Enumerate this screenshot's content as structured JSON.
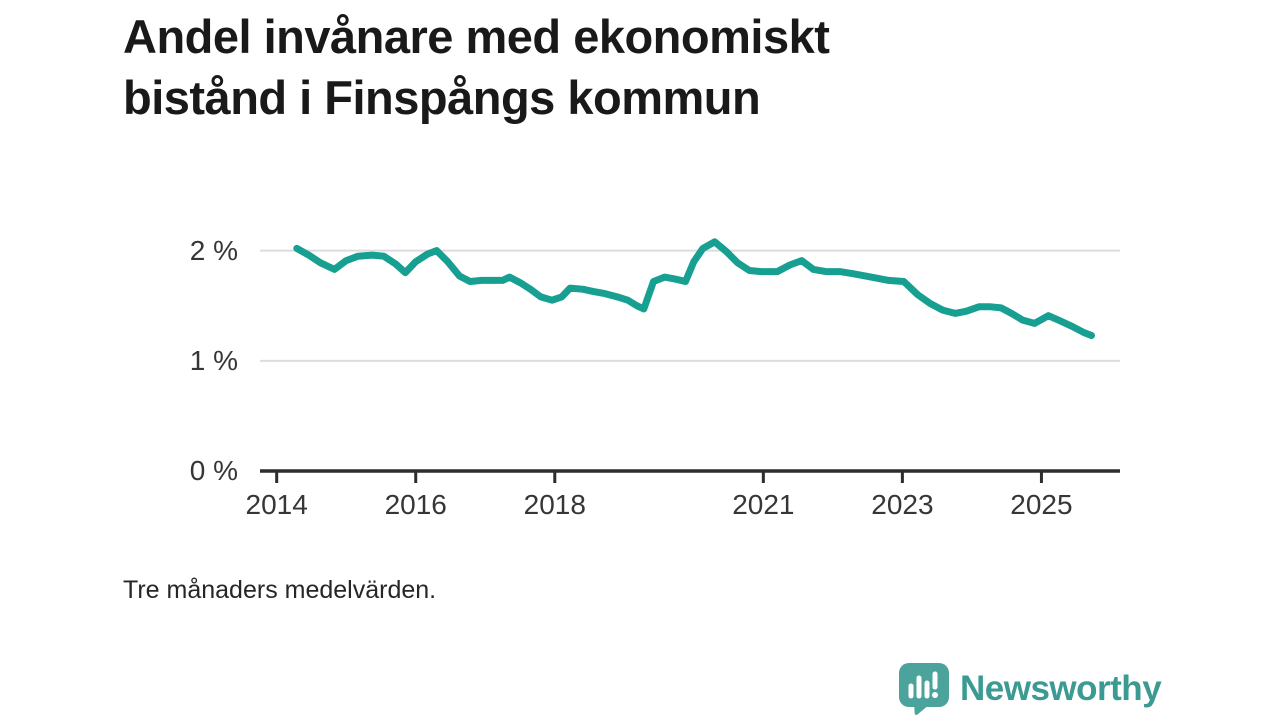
{
  "title": {
    "line1": "Andel invånare med ekonomiskt",
    "line2": "bistånd i Finspångs kommun"
  },
  "footnote": "Tre månaders medelvärden.",
  "branding": {
    "name": "Newsworthy"
  },
  "colors": {
    "line": "#17a091",
    "grid": "#dcdcdc",
    "axis": "#2d2d2d",
    "title_text": "#191919",
    "tick_text": "#363636",
    "logo_text": "#3b9a92",
    "logo_icon": "#4ba39b"
  },
  "chart_data": {
    "type": "line",
    "title": "Andel invånare med ekonomiskt bistånd i Finspångs kommun",
    "subtitle": "Tre månaders medelvärden.",
    "xlabel": "",
    "ylabel": "",
    "xlim": [
      2013.76,
      2026.13
    ],
    "ylim": [
      0,
      2.26
    ],
    "grid": "horizontal",
    "legend": "none",
    "yticks": [
      {
        "value": 0,
        "label": "0 %"
      },
      {
        "value": 1,
        "label": "1 %"
      },
      {
        "value": 2,
        "label": "2 %"
      }
    ],
    "xticks": [
      {
        "value": 2014,
        "label": "2014"
      },
      {
        "value": 2016,
        "label": "2016"
      },
      {
        "value": 2018,
        "label": "2018"
      },
      {
        "value": 2021,
        "label": "2021"
      },
      {
        "value": 2023,
        "label": "2023"
      },
      {
        "value": 2025,
        "label": "2025"
      }
    ],
    "series": [
      {
        "x": [
          2014.29,
          2014.46,
          2014.63,
          2014.83,
          2015.0,
          2015.17,
          2015.37,
          2015.54,
          2015.71,
          2015.85,
          2016.0,
          2016.17,
          2016.3,
          2016.46,
          2016.63,
          2016.78,
          2016.95,
          2017.1,
          2017.25,
          2017.35,
          2017.5,
          2017.65,
          2017.8,
          2017.96,
          2018.1,
          2018.22,
          2018.4,
          2018.55,
          2018.72,
          2018.9,
          2019.05,
          2019.18,
          2019.28,
          2019.42,
          2019.58,
          2019.75,
          2019.88,
          2020.0,
          2020.13,
          2020.3,
          2020.47,
          2020.63,
          2020.8,
          2020.97,
          2021.2,
          2021.38,
          2021.55,
          2021.72,
          2021.9,
          2022.1,
          2022.3,
          2022.55,
          2022.8,
          2023.02,
          2023.22,
          2023.4,
          2023.58,
          2023.76,
          2023.92,
          2024.1,
          2024.27,
          2024.42,
          2024.57,
          2024.73,
          2024.9,
          2025.1,
          2025.28,
          2025.45,
          2025.6,
          2025.72
        ],
        "values": [
          2.02,
          1.96,
          1.89,
          1.83,
          1.91,
          1.95,
          1.96,
          1.95,
          1.88,
          1.8,
          1.9,
          1.97,
          2.0,
          1.9,
          1.77,
          1.72,
          1.73,
          1.73,
          1.73,
          1.76,
          1.71,
          1.65,
          1.58,
          1.55,
          1.58,
          1.66,
          1.65,
          1.63,
          1.61,
          1.58,
          1.55,
          1.5,
          1.47,
          1.72,
          1.76,
          1.74,
          1.72,
          1.9,
          2.02,
          2.08,
          1.99,
          1.89,
          1.82,
          1.81,
          1.81,
          1.87,
          1.91,
          1.83,
          1.81,
          1.81,
          1.79,
          1.76,
          1.73,
          1.72,
          1.6,
          1.52,
          1.46,
          1.43,
          1.45,
          1.49,
          1.49,
          1.48,
          1.43,
          1.37,
          1.34,
          1.41,
          1.36,
          1.31,
          1.26,
          1.23
        ]
      }
    ]
  }
}
